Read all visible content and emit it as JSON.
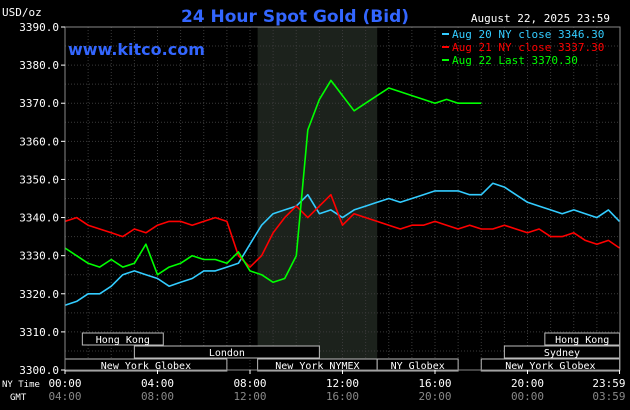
{
  "header": {
    "title": "24 Hour Spot Gold (Bid)",
    "units": "USD/oz",
    "date": "August 22, 2025 23:59",
    "website": "www.kitco.com"
  },
  "legend": [
    {
      "label": "Aug 20 NY close 3346.30",
      "color": "#33ccff"
    },
    {
      "label": "Aug 21 NY close 3337.30",
      "color": "#ff0000"
    },
    {
      "label": "Aug 22 Last 3370.30",
      "color": "#00ff00"
    }
  ],
  "axis_labels": {
    "ny_time": "NY Time",
    "gmt": "GMT"
  },
  "sessions": [
    {
      "label": "Hong Kong",
      "start": 0.75,
      "end": 4.25,
      "row": 0
    },
    {
      "label": "London",
      "start": 3.0,
      "end": 11.0,
      "row": 1
    },
    {
      "label": "New York Globex",
      "start": 0.0,
      "end": 7.0,
      "row": 2
    },
    {
      "label": "New York NYMEX",
      "start": 8.33,
      "end": 13.5,
      "row": 2
    },
    {
      "label": "NY Globex",
      "start": 13.5,
      "end": 17.0,
      "row": 2
    },
    {
      "label": "Hong Kong",
      "start": 20.75,
      "end": 23.98,
      "row": 0
    },
    {
      "label": "Sydney",
      "start": 19.0,
      "end": 23.98,
      "row": 1
    },
    {
      "label": "New York Globex",
      "start": 18.0,
      "end": 23.98,
      "row": 2
    }
  ],
  "chart_data": {
    "type": "line",
    "title": "24 Hour Spot Gold (Bid)",
    "ylabel": "USD/oz",
    "ylim": [
      3300,
      3390
    ],
    "yticks": [
      "3300.0",
      "3310.0",
      "3320.0",
      "3330.0",
      "3340.0",
      "3350.0",
      "3360.0",
      "3370.0",
      "3380.0",
      "3390.0"
    ],
    "xlim": [
      0,
      24
    ],
    "xticks_ny": [
      "00:00",
      "04:00",
      "08:00",
      "12:00",
      "16:00",
      "20:00",
      "23:59"
    ],
    "xticks_gmt": [
      "04:00",
      "08:00",
      "12:00",
      "16:00",
      "20:00",
      "00:00",
      "03:59"
    ],
    "xtick_hours": [
      0,
      4,
      8,
      12,
      16,
      20,
      23.98
    ],
    "highlight": [
      8.33,
      13.5
    ],
    "grid": true,
    "series": [
      {
        "name": "Aug 20 NY close 3346.30",
        "color": "#33ccff",
        "x": [
          0,
          0.5,
          1,
          1.5,
          2,
          2.5,
          3,
          3.5,
          4,
          4.5,
          5,
          5.5,
          6,
          6.5,
          7,
          7.5,
          8,
          8.5,
          9,
          9.5,
          10,
          10.5,
          11,
          11.5,
          12,
          12.5,
          13,
          13.5,
          14,
          14.5,
          15,
          15.5,
          16,
          16.5,
          17,
          17.5,
          18,
          18.5,
          19,
          19.5,
          20,
          20.5,
          21,
          21.5,
          22,
          22.5,
          23,
          23.5,
          23.98
        ],
        "values": [
          3317,
          3318,
          3320,
          3320,
          3322,
          3325,
          3326,
          3325,
          3324,
          3322,
          3323,
          3324,
          3326,
          3326,
          3327,
          3328,
          3333,
          3338,
          3341,
          3342,
          3343,
          3346,
          3341,
          3342,
          3340,
          3342,
          3343,
          3344,
          3345,
          3344,
          3345,
          3346,
          3347,
          3347,
          3347,
          3346,
          3346,
          3349,
          3348,
          3346,
          3344,
          3343,
          3342,
          3341,
          3342,
          3341,
          3340,
          3342,
          3339
        ]
      },
      {
        "name": "Aug 21 NY close 3337.30",
        "color": "#ff0000",
        "x": [
          0,
          0.5,
          1,
          1.5,
          2,
          2.5,
          3,
          3.5,
          4,
          4.5,
          5,
          5.5,
          6,
          6.5,
          7,
          7.5,
          8,
          8.5,
          9,
          9.5,
          10,
          10.5,
          11,
          11.5,
          12,
          12.5,
          13,
          13.5,
          14,
          14.5,
          15,
          15.5,
          16,
          16.5,
          17,
          17.5,
          18,
          18.5,
          19,
          19.5,
          20,
          20.5,
          21,
          21.5,
          22,
          22.5,
          23,
          23.5,
          23.98
        ],
        "values": [
          3339,
          3340,
          3338,
          3337,
          3336,
          3335,
          3337,
          3336,
          3338,
          3339,
          3339,
          3338,
          3339,
          3340,
          3339,
          3330,
          3327,
          3330,
          3336,
          3340,
          3343,
          3340,
          3343,
          3346,
          3338,
          3341,
          3340,
          3339,
          3338,
          3337,
          3338,
          3338,
          3339,
          3338,
          3337,
          3338,
          3337,
          3337,
          3338,
          3337,
          3336,
          3337,
          3335,
          3335,
          3336,
          3334,
          3333,
          3334,
          3332
        ]
      },
      {
        "name": "Aug 22 Last 3370.30",
        "color": "#00ff00",
        "x": [
          0,
          0.5,
          1,
          1.5,
          2,
          2.5,
          3,
          3.5,
          4,
          4.5,
          5,
          5.5,
          6,
          6.5,
          7,
          7.5,
          8,
          8.5,
          9,
          9.5,
          10,
          10.5,
          11,
          11.5,
          12,
          12.5,
          13,
          13.5,
          14,
          14.5,
          15,
          15.5,
          16,
          16.5,
          17,
          17.5,
          18
        ],
        "values": [
          3332,
          3330,
          3328,
          3327,
          3329,
          3327,
          3328,
          3333,
          3325,
          3327,
          3328,
          3330,
          3329,
          3329,
          3328,
          3331,
          3326,
          3325,
          3323,
          3324,
          3330,
          3363,
          3371,
          3376,
          3372,
          3368,
          3370,
          3372,
          3374,
          3373,
          3372,
          3371,
          3370,
          3371,
          3370,
          3370,
          3370
        ]
      }
    ]
  }
}
